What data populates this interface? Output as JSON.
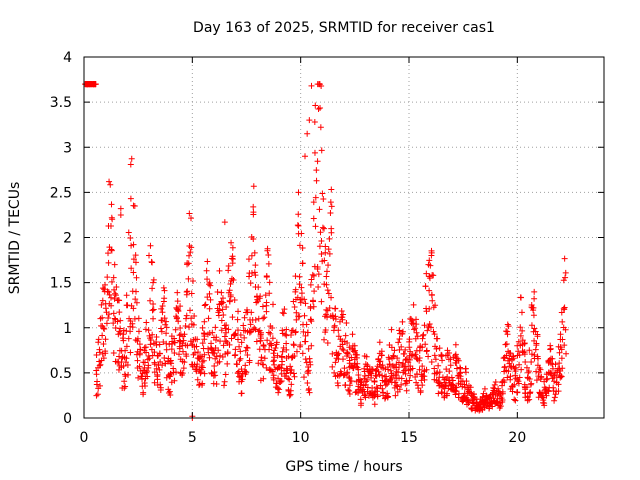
{
  "chart_data": {
    "type": "scatter",
    "title": "Day 163 of 2025, SRMTID for receiver cas1",
    "xlabel": "GPS time / hours",
    "ylabel": "SRMTID / TECUs",
    "xlim": [
      0,
      24
    ],
    "ylim": [
      0,
      4
    ],
    "xticks": [
      0,
      5,
      10,
      15,
      20
    ],
    "xtick_labels": [
      "0",
      "5",
      "10",
      "15",
      "20"
    ],
    "yticks": [
      0,
      0.5,
      1,
      1.5,
      2,
      2.5,
      3,
      3.5,
      4
    ],
    "ytick_labels": [
      "0",
      "0.5",
      "1",
      "1.5",
      "2",
      "2.5",
      "3",
      "3.5",
      "4"
    ],
    "grid": true,
    "marker": "+",
    "series": [
      {
        "name": "SRMTID",
        "color": "#ff0000",
        "x": [
          0.1,
          0.2,
          0.3,
          0.4,
          0.5,
          0.6,
          0.7,
          0.8,
          0.9,
          1.0,
          1.1,
          1.2,
          1.3,
          1.4,
          1.5,
          1.6,
          1.7,
          1.8,
          1.9,
          2.0,
          2.1,
          2.2,
          2.3,
          2.4,
          2.5,
          2.6,
          2.7,
          2.8,
          2.9,
          3.0,
          3.1,
          3.2,
          3.3,
          3.4,
          3.5,
          3.6,
          3.7,
          3.8,
          3.9,
          4.0,
          4.1,
          4.2,
          4.3,
          4.4,
          4.5,
          4.6,
          4.7,
          4.8,
          4.9,
          5.0,
          5.1,
          5.2,
          5.3,
          5.4,
          5.5,
          5.6,
          5.7,
          5.8,
          5.9,
          6.0,
          6.1,
          6.2,
          6.3,
          6.4,
          6.5,
          6.6,
          6.7,
          6.8,
          6.9,
          7.0,
          7.1,
          7.2,
          7.3,
          7.4,
          7.5,
          7.6,
          7.7,
          7.8,
          7.9,
          8.0,
          8.1,
          8.2,
          8.3,
          8.4,
          8.5,
          8.6,
          8.7,
          8.8,
          8.9,
          9.0,
          9.1,
          9.2,
          9.3,
          9.4,
          9.5,
          9.6,
          9.7,
          9.8,
          9.9,
          10.0,
          10.1,
          10.2,
          10.3,
          10.4,
          10.5,
          10.6,
          10.7,
          10.8,
          10.9,
          11.0,
          11.1,
          11.2,
          11.3,
          11.4,
          11.5,
          11.6,
          11.7,
          11.8,
          11.9,
          12.0,
          12.1,
          12.2,
          12.3,
          12.4,
          12.5,
          12.6,
          12.7,
          12.8,
          12.9,
          13.0,
          13.1,
          13.2,
          13.3,
          13.4,
          13.5,
          13.6,
          13.7,
          13.8,
          13.9,
          14.0,
          14.1,
          14.2,
          14.3,
          14.4,
          14.5,
          14.6,
          14.7,
          14.8,
          14.9,
          15.0,
          15.1,
          15.2,
          15.3,
          15.4,
          15.5,
          15.6,
          15.7,
          15.8,
          15.9,
          16.0,
          16.1,
          16.2,
          16.3,
          16.4,
          16.5,
          16.6,
          16.7,
          16.8,
          16.9,
          17.0,
          17.1,
          17.2,
          17.3,
          17.4,
          17.5,
          17.6,
          17.7,
          17.8,
          17.9,
          18.0,
          18.1,
          18.2,
          18.3,
          18.4,
          18.5,
          18.6,
          18.7,
          18.8,
          18.9,
          19.0,
          19.1,
          19.2,
          19.3,
          19.4,
          19.5,
          19.6,
          19.7,
          19.8,
          19.9,
          20.0,
          20.1,
          20.2,
          20.3,
          20.4,
          20.5,
          20.6,
          20.7,
          20.8,
          20.9,
          21.0,
          21.1,
          21.2,
          21.3,
          21.4,
          21.5,
          21.6,
          21.7,
          21.8,
          21.9,
          22.0,
          22.1,
          22.2,
          22.3,
          22.4,
          22.5,
          22.6,
          22.7,
          0.5,
          0.7,
          0.9,
          1.1,
          1.3,
          1.6,
          1.9,
          1.7,
          1.4,
          1.2,
          1.0,
          0.8,
          0.7,
          0.6,
          1.0,
          1.5,
          2.1,
          1.7,
          1.3,
          0.9,
          0.6,
          0.5,
          0.6,
          0.8,
          1.0,
          1.4,
          1.1,
          0.7,
          0.5,
          0.6,
          0.9,
          1.1,
          0.8,
          0.6,
          0.5,
          0.7,
          0.9,
          1.2,
          1.0,
          0.8,
          0.7,
          1.0,
          1.4,
          1.8,
          1.2,
          0.9,
          0.7,
          0.6,
          0.5,
          0.8,
          1.0,
          1.3,
          1.1,
          0.9,
          0.7,
          0.8,
          1.0,
          1.2,
          1.0,
          0.8,
          0.9,
          1.3,
          1.6,
          1.4,
          1.1,
          0.9,
          0.7,
          0.6,
          0.8,
          1.0,
          1.3,
          1.6,
          1.9,
          1.5,
          1.2,
          1.0,
          0.8,
          0.9,
          1.2,
          1.4,
          1.1,
          0.9,
          0.7,
          0.6,
          0.5,
          0.7,
          0.9,
          0.8,
          0.6,
          0.5,
          0.7,
          1.0,
          1.5,
          2.0,
          1.7,
          1.4,
          1.0,
          0.8,
          0.6,
          1.2,
          1.8,
          2.5,
          3.0,
          3.3,
          2.4,
          1.8,
          1.2,
          1.6,
          1.9,
          1.1,
          0.9,
          0.7,
          0.8,
          1.0,
          0.9,
          0.8,
          0.6,
          0.5,
          0.7,
          0.6,
          0.5,
          0.4,
          0.3,
          0.4,
          0.5,
          0.6,
          0.5,
          0.4,
          0.3,
          0.4,
          0.5,
          0.6,
          0.5,
          0.4,
          0.5,
          0.6,
          0.7,
          0.6,
          0.5,
          0.6,
          0.7,
          0.8,
          0.7,
          0.6,
          0.7,
          0.8,
          0.9,
          0.8,
          0.7,
          0.6,
          0.7,
          0.8,
          1.1,
          1.3,
          1.5,
          1.2,
          0.9,
          0.7,
          0.6,
          0.5,
          0.4,
          0.5,
          0.6,
          0.5,
          0.4,
          0.5,
          0.6,
          0.5,
          0.4,
          0.3,
          0.4,
          0.3,
          0.3,
          0.2,
          0.2,
          0.15,
          0.12,
          0.15,
          0.2,
          0.25,
          0.2,
          0.18,
          0.2,
          0.25,
          0.3,
          0.25,
          0.2,
          0.3,
          0.5,
          0.7,
          0.8,
          0.6,
          0.5,
          0.4,
          0.6,
          0.8,
          1.0,
          0.7,
          0.5,
          0.4,
          0.6,
          0.9,
          1.1,
          0.8,
          0.5,
          0.4,
          0.3,
          0.4,
          0.5,
          0.6,
          0.5,
          0.4,
          0.5,
          0.6,
          0.8,
          1.1,
          1.3
        ]
      }
    ],
    "annotations": [
      {
        "x": 5.0,
        "y": 0.0,
        "text": ""
      }
    ]
  }
}
